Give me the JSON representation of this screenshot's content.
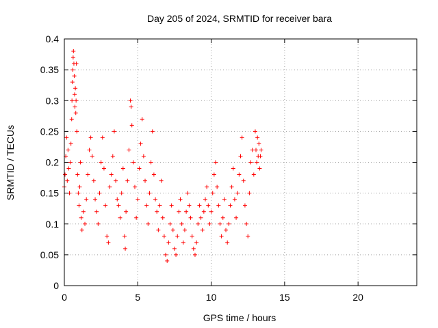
{
  "chart_data": {
    "type": "scatter",
    "title": "Day 205 of 2024, SRMTID for receiver bara",
    "xlabel": "GPS time / hours",
    "ylabel": "SRMTID / TECUs",
    "xlim": [
      0,
      24
    ],
    "ylim": [
      0,
      0.4
    ],
    "xticks": [
      0,
      5,
      10,
      15,
      20
    ],
    "xtick_labels": [
      "0",
      "5",
      "10",
      "15",
      "20"
    ],
    "yticks": [
      0,
      0.05,
      0.1,
      0.15,
      0.2,
      0.25,
      0.3,
      0.35,
      0.4
    ],
    "ytick_labels": [
      "0",
      "0.05",
      "0.1",
      "0.15",
      "0.2",
      "0.25",
      "0.3",
      "0.35",
      "0.4"
    ],
    "grid": true,
    "marker": "plus",
    "marker_color": "#ff0000",
    "series": [
      {
        "name": "SRMTID",
        "points": [
          [
            0.0,
            0.16
          ],
          [
            0.05,
            0.18
          ],
          [
            0.1,
            0.21
          ],
          [
            0.15,
            0.24
          ],
          [
            0.2,
            0.17
          ],
          [
            0.25,
            0.22
          ],
          [
            0.3,
            0.19
          ],
          [
            0.35,
            0.15
          ],
          [
            0.4,
            0.2
          ],
          [
            0.45,
            0.23
          ],
          [
            0.5,
            0.27
          ],
          [
            0.52,
            0.3
          ],
          [
            0.55,
            0.33
          ],
          [
            0.58,
            0.35
          ],
          [
            0.6,
            0.37
          ],
          [
            0.62,
            0.38
          ],
          [
            0.65,
            0.36
          ],
          [
            0.68,
            0.34
          ],
          [
            0.7,
            0.31
          ],
          [
            0.72,
            0.29
          ],
          [
            0.75,
            0.32
          ],
          [
            0.78,
            0.28
          ],
          [
            0.8,
            0.3
          ],
          [
            0.82,
            0.36
          ],
          [
            0.85,
            0.25
          ],
          [
            0.9,
            0.18
          ],
          [
            0.95,
            0.15
          ],
          [
            1.0,
            0.13
          ],
          [
            1.05,
            0.16
          ],
          [
            1.1,
            0.2
          ],
          [
            1.15,
            0.11
          ],
          [
            1.2,
            0.09
          ],
          [
            1.3,
            0.12
          ],
          [
            1.4,
            0.1
          ],
          [
            1.5,
            0.14
          ],
          [
            1.6,
            0.18
          ],
          [
            1.7,
            0.22
          ],
          [
            1.8,
            0.24
          ],
          [
            1.9,
            0.21
          ],
          [
            2.0,
            0.17
          ],
          [
            2.1,
            0.14
          ],
          [
            2.2,
            0.12
          ],
          [
            2.3,
            0.1
          ],
          [
            2.4,
            0.15
          ],
          [
            2.5,
            0.2
          ],
          [
            2.6,
            0.24
          ],
          [
            2.7,
            0.19
          ],
          [
            2.8,
            0.13
          ],
          [
            2.9,
            0.08
          ],
          [
            3.0,
            0.07
          ],
          [
            3.1,
            0.16
          ],
          [
            3.2,
            0.18
          ],
          [
            3.3,
            0.21
          ],
          [
            3.4,
            0.25
          ],
          [
            3.5,
            0.17
          ],
          [
            3.6,
            0.14
          ],
          [
            3.7,
            0.13
          ],
          [
            3.8,
            0.11
          ],
          [
            3.9,
            0.15
          ],
          [
            4.0,
            0.19
          ],
          [
            4.1,
            0.08
          ],
          [
            4.15,
            0.06
          ],
          [
            4.2,
            0.12
          ],
          [
            4.3,
            0.17
          ],
          [
            4.4,
            0.22
          ],
          [
            4.5,
            0.3
          ],
          [
            4.55,
            0.29
          ],
          [
            4.6,
            0.26
          ],
          [
            4.7,
            0.2
          ],
          [
            4.8,
            0.16
          ],
          [
            4.9,
            0.11
          ],
          [
            5.0,
            0.14
          ],
          [
            5.1,
            0.19
          ],
          [
            5.2,
            0.23
          ],
          [
            5.3,
            0.27
          ],
          [
            5.4,
            0.21
          ],
          [
            5.5,
            0.17
          ],
          [
            5.6,
            0.13
          ],
          [
            5.7,
            0.1
          ],
          [
            5.8,
            0.15
          ],
          [
            5.9,
            0.2
          ],
          [
            6.0,
            0.25
          ],
          [
            6.1,
            0.18
          ],
          [
            6.2,
            0.14
          ],
          [
            6.3,
            0.12
          ],
          [
            6.4,
            0.09
          ],
          [
            6.5,
            0.13
          ],
          [
            6.6,
            0.17
          ],
          [
            6.7,
            0.11
          ],
          [
            6.8,
            0.08
          ],
          [
            6.9,
            0.05
          ],
          [
            7.0,
            0.04
          ],
          [
            7.1,
            0.07
          ],
          [
            7.2,
            0.1
          ],
          [
            7.3,
            0.13
          ],
          [
            7.4,
            0.09
          ],
          [
            7.5,
            0.06
          ],
          [
            7.6,
            0.05
          ],
          [
            7.7,
            0.08
          ],
          [
            7.8,
            0.12
          ],
          [
            7.9,
            0.14
          ],
          [
            8.0,
            0.1
          ],
          [
            8.1,
            0.07
          ],
          [
            8.2,
            0.09
          ],
          [
            8.3,
            0.12
          ],
          [
            8.4,
            0.15
          ],
          [
            8.5,
            0.13
          ],
          [
            8.6,
            0.11
          ],
          [
            8.7,
            0.08
          ],
          [
            8.8,
            0.06
          ],
          [
            8.9,
            0.05
          ],
          [
            9.0,
            0.07
          ],
          [
            9.1,
            0.1
          ],
          [
            9.2,
            0.13
          ],
          [
            9.3,
            0.11
          ],
          [
            9.4,
            0.09
          ],
          [
            9.5,
            0.12
          ],
          [
            9.6,
            0.14
          ],
          [
            9.7,
            0.16
          ],
          [
            9.8,
            0.13
          ],
          [
            9.9,
            0.1
          ],
          [
            10.0,
            0.12
          ],
          [
            10.1,
            0.15
          ],
          [
            10.2,
            0.18
          ],
          [
            10.3,
            0.2
          ],
          [
            10.4,
            0.16
          ],
          [
            10.5,
            0.13
          ],
          [
            10.6,
            0.1
          ],
          [
            10.7,
            0.08
          ],
          [
            10.8,
            0.11
          ],
          [
            10.9,
            0.14
          ],
          [
            11.0,
            0.09
          ],
          [
            11.1,
            0.07
          ],
          [
            11.2,
            0.1
          ],
          [
            11.3,
            0.13
          ],
          [
            11.4,
            0.16
          ],
          [
            11.5,
            0.19
          ],
          [
            11.6,
            0.14
          ],
          [
            11.7,
            0.11
          ],
          [
            11.8,
            0.15
          ],
          [
            11.9,
            0.18
          ],
          [
            12.0,
            0.21
          ],
          [
            12.1,
            0.24
          ],
          [
            12.2,
            0.17
          ],
          [
            12.3,
            0.13
          ],
          [
            12.4,
            0.1
          ],
          [
            12.5,
            0.08
          ],
          [
            12.6,
            0.15
          ],
          [
            12.7,
            0.2
          ],
          [
            12.8,
            0.22
          ],
          [
            12.9,
            0.18
          ],
          [
            13.0,
            0.25
          ],
          [
            13.05,
            0.22
          ],
          [
            13.1,
            0.2
          ],
          [
            13.15,
            0.24
          ],
          [
            13.2,
            0.21
          ],
          [
            13.25,
            0.23
          ],
          [
            13.3,
            0.19
          ],
          [
            13.35,
            0.21
          ],
          [
            13.4,
            0.22
          ]
        ]
      }
    ]
  }
}
